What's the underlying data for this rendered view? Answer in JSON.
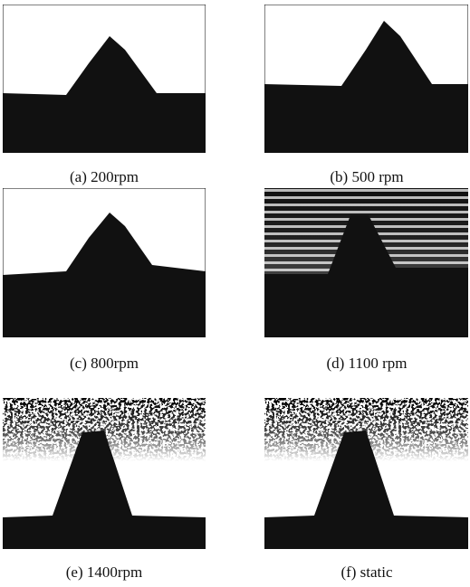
{
  "figure": {
    "panels": [
      {
        "caption": "(a) 200rpm"
      },
      {
        "caption": "(b) 500 rpm"
      },
      {
        "caption": "(c) 800rpm"
      },
      {
        "caption": "(d) 1100 rpm"
      },
      {
        "caption": "(e) 1400rpm"
      },
      {
        "caption": "(f) static"
      }
    ]
  }
}
